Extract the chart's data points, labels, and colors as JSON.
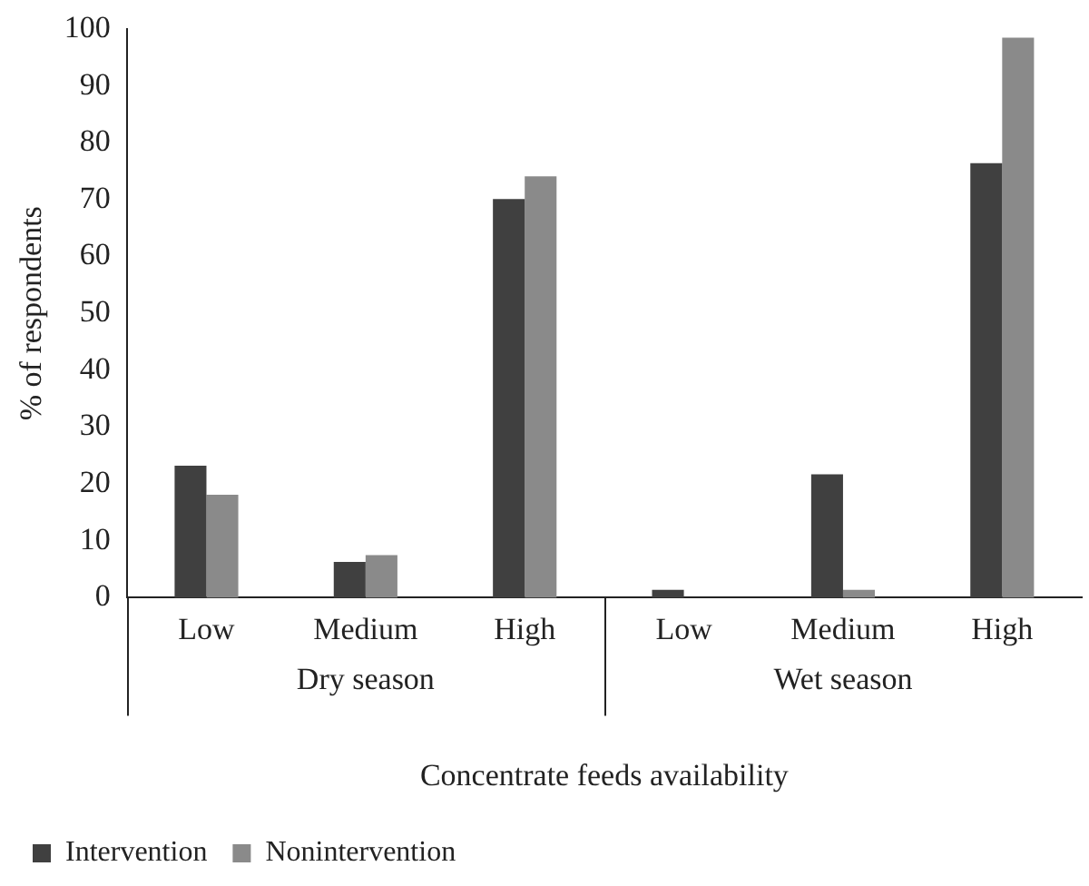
{
  "chart_data": {
    "type": "bar",
    "xlabel": "Concentrate feeds availability",
    "ylabel": "% of respondents",
    "categories": [
      "Low",
      "Medium",
      "High",
      "Low",
      "Medium",
      "High"
    ],
    "series": [
      {
        "name": "Intervention",
        "color": "#404040",
        "values": [
          23.2,
          6.3,
          70.1,
          1.4,
          21.7,
          76.4
        ]
      },
      {
        "name": "Nonintervention",
        "color": "#8a8a8a",
        "values": [
          18.1,
          7.5,
          74.1,
          0,
          1.4,
          98.5
        ]
      }
    ],
    "ylim": [
      0,
      100
    ],
    "yticks": [
      0,
      10,
      20,
      30,
      40,
      50,
      60,
      70,
      80,
      90,
      100
    ],
    "grid": false,
    "legend": "bottom left",
    "annotations": [
      "Dry season",
      "Wet season"
    ]
  }
}
